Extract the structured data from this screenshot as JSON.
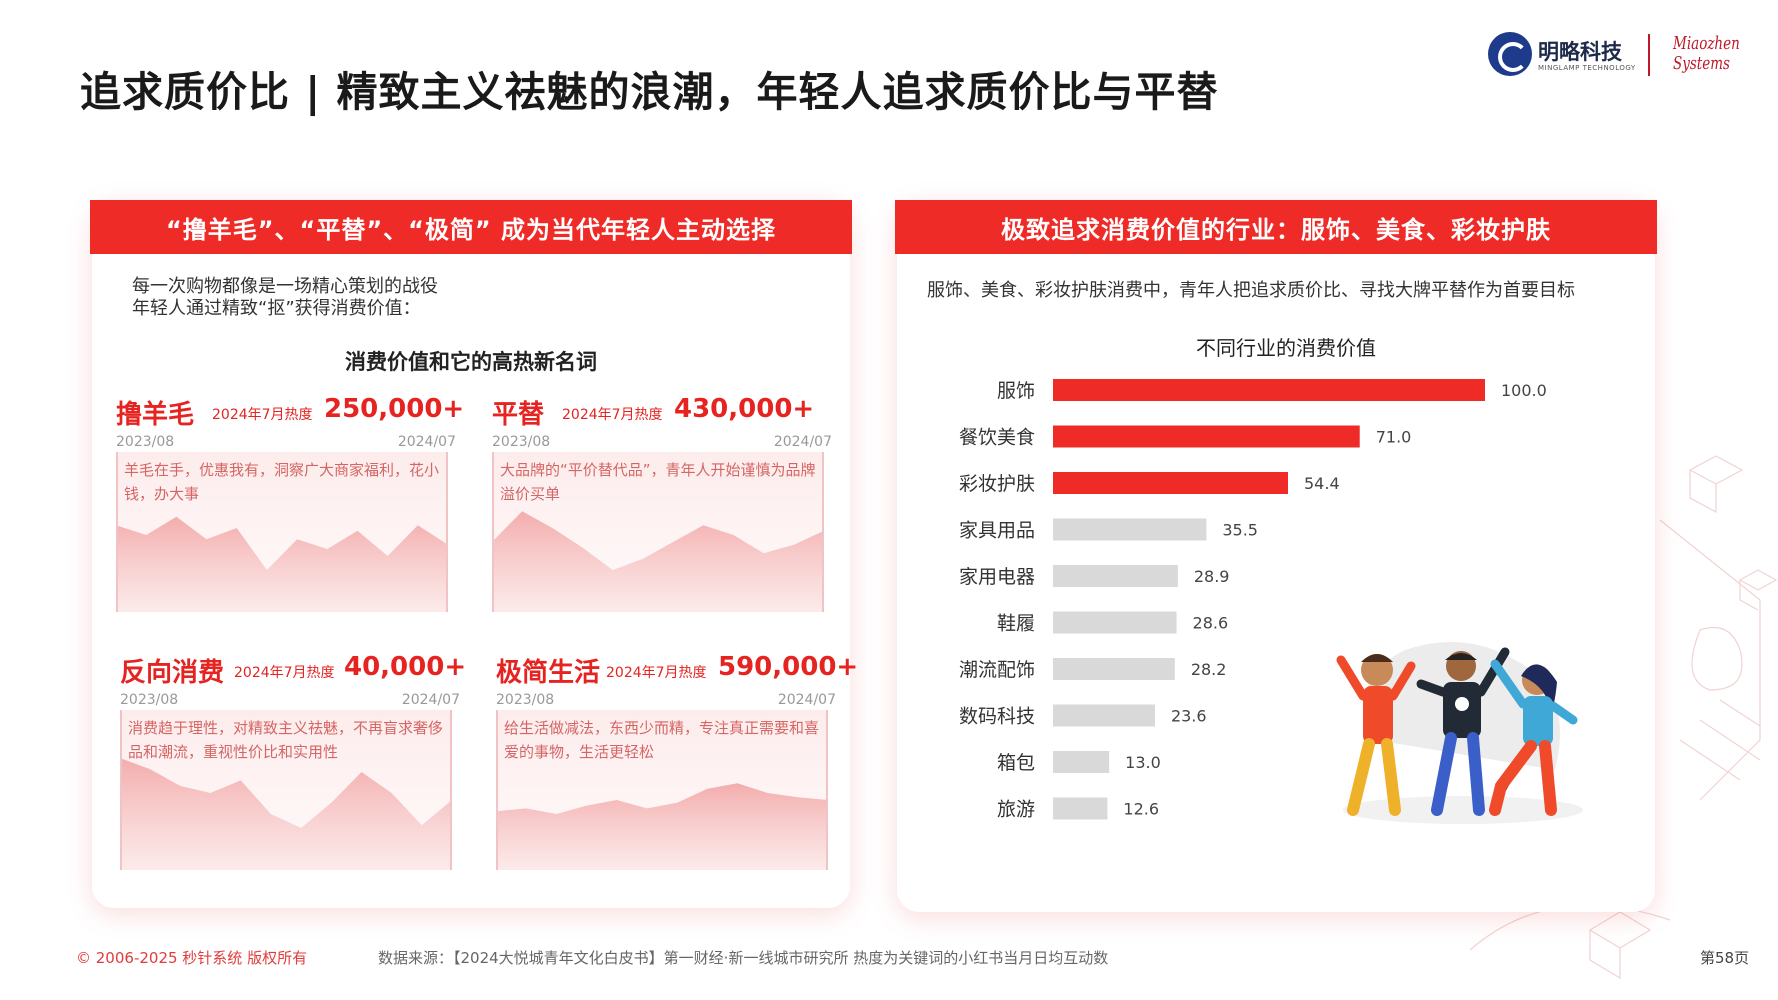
{
  "title": "追求质价比 | 精致主义祛魅的浪潮，年轻人追求质价比与平替",
  "logo": {
    "name": "明略科技",
    "sub": "MINGLAMP TECHNOLOGY",
    "right_line1": "Miaozhen",
    "right_line2": "Systems"
  },
  "left": {
    "header": "“撸羊毛”、“平替”、“极简” 成为当代年轻人主动选择",
    "intro_line1": "每一次购物都像是一场精心策划的战役",
    "intro_line2": "年轻人通过精致“抠”获得消费价值：",
    "subtitle": "消费价值和它的高热新名词",
    "trends": [
      {
        "name": "撸羊毛",
        "heat_label": "2024年7月热度",
        "heat_value": "250,000+",
        "start": "2023/08",
        "end": "2024/07",
        "desc": "羊毛在手，优惠我有，洞察广大商家福利，花小钱，办大事"
      },
      {
        "name": "平替",
        "heat_label": "2024年7月热度",
        "heat_value": "430,000+",
        "start": "2023/08",
        "end": "2024/07",
        "desc": "大品牌的“平价替代品”，青年人开始谨慎为品牌溢价买单"
      },
      {
        "name": "反向消费",
        "heat_label": "2024年7月热度",
        "heat_value": "40,000+",
        "start": "2023/08",
        "end": "2024/07",
        "desc": "消费趋于理性，对精致主义祛魅，不再盲求奢侈品和潮流，重视性价比和实用性"
      },
      {
        "name": "极简生活",
        "heat_label": "2024年7月热度",
        "heat_value": "590,000+",
        "start": "2023/08",
        "end": "2024/07",
        "desc": "给生活做减法，东西少而精，专注真正需要和喜爱的事物，生活更轻松"
      }
    ]
  },
  "right": {
    "header": "极致追求消费价值的行业：服饰、美食、彩妆护肤",
    "desc": "服饰、美食、彩妆护肤消费中，青年人把追求质价比、寻找大牌平替作为首要目标"
  },
  "chart_data": {
    "type": "bar",
    "orientation": "horizontal",
    "title": "不同行业的消费价值",
    "categories": [
      "服饰",
      "餐饮美食",
      "彩妆护肤",
      "家具用品",
      "家用电器",
      "鞋履",
      "潮流配饰",
      "数码科技",
      "箱包",
      "旅游"
    ],
    "values": [
      100.0,
      71.0,
      54.4,
      35.5,
      28.9,
      28.6,
      28.2,
      23.6,
      13.0,
      12.6
    ],
    "value_labels": [
      "100.0",
      "71.0",
      "54.4",
      "35.5",
      "28.9",
      "28.6",
      "28.2",
      "23.6",
      "13.0",
      "12.6"
    ],
    "highlight_count": 3,
    "highlight_color": "#ef2b28",
    "base_color": "#d9d9d9",
    "xlim": [
      0,
      100
    ],
    "grid": false,
    "legend": "none"
  },
  "trend_series": [
    [
      0.62,
      0.55,
      0.68,
      0.52,
      0.6,
      0.3,
      0.52,
      0.45,
      0.58,
      0.4,
      0.62,
      0.48
    ],
    [
      0.5,
      0.72,
      0.6,
      0.46,
      0.3,
      0.38,
      0.5,
      0.62,
      0.55,
      0.42,
      0.48,
      0.58
    ],
    [
      0.8,
      0.72,
      0.6,
      0.55,
      0.64,
      0.4,
      0.3,
      0.48,
      0.7,
      0.55,
      0.32,
      0.5
    ],
    [
      0.42,
      0.44,
      0.4,
      0.46,
      0.5,
      0.44,
      0.48,
      0.58,
      0.62,
      0.55,
      0.52,
      0.5
    ]
  ],
  "footer": {
    "copyright": "© 2006-2025 秒针系统 版权所有",
    "source": "数据来源：【2024大悦城青年文化白皮书】第一财经·新一线城市研究所   热度为关键词的小红书当月日均互动数",
    "page": "第58页"
  },
  "colors": {
    "accent": "#ef2b28",
    "area_fill": "#f3a9a9"
  }
}
